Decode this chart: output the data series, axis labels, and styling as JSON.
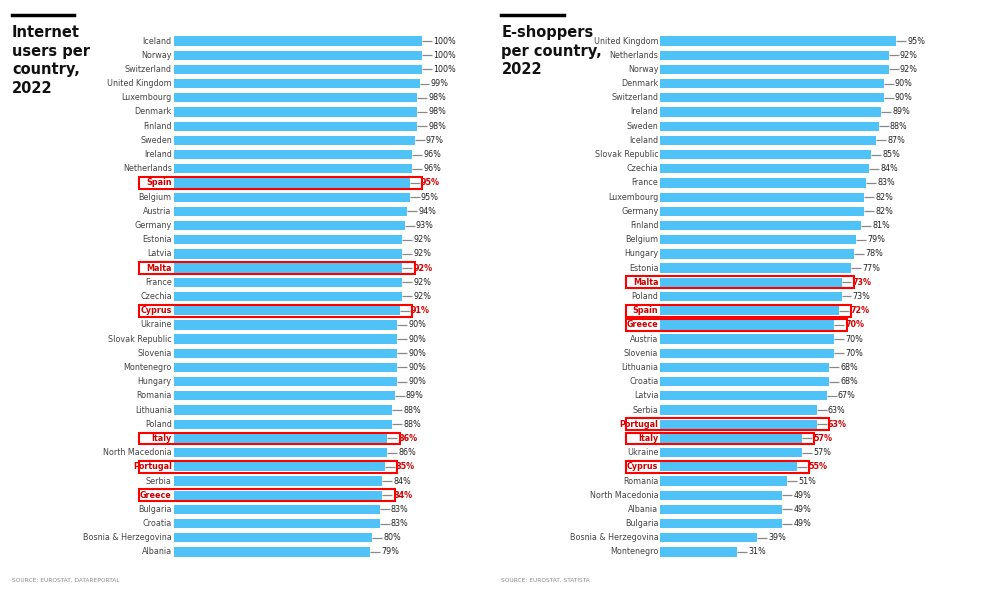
{
  "chart1_title": "Internet\nusers per\ncountry,\n2022",
  "chart1_source": "SOURCE: EUROSTAT, DATAREPORTAL",
  "chart1_countries": [
    "Iceland",
    "Norway",
    "Switzerland",
    "United Kingdom",
    "Luxembourg",
    "Denmark",
    "Finland",
    "Sweden",
    "Ireland",
    "Netherlands",
    "Spain",
    "Belgium",
    "Austria",
    "Germany",
    "Estonia",
    "Latvia",
    "Malta",
    "France",
    "Czechia",
    "Cyprus",
    "Ukraine",
    "Slovak Republic",
    "Slovenia",
    "Montenegro",
    "Hungary",
    "Romania",
    "Lithuania",
    "Poland",
    "Italy",
    "North Macedonia",
    "Portugal",
    "Serbia",
    "Greece",
    "Bulgaria",
    "Croatia",
    "Bosnia & Herzegovina",
    "Albania"
  ],
  "chart1_values": [
    100,
    100,
    100,
    99,
    98,
    98,
    98,
    97,
    96,
    96,
    95,
    95,
    94,
    93,
    92,
    92,
    92,
    92,
    92,
    91,
    90,
    90,
    90,
    90,
    90,
    89,
    88,
    88,
    86,
    86,
    85,
    84,
    84,
    83,
    83,
    80,
    79
  ],
  "chart1_highlighted": [
    "Spain",
    "Malta",
    "Cyprus",
    "Italy",
    "Portugal",
    "Greece"
  ],
  "chart2_title": "E-shoppers\nper country,\n2022",
  "chart2_source": "SOURCE: EUROSTAT, STATISTA",
  "chart2_countries": [
    "United Kingdom",
    "Netherlands",
    "Norway",
    "Denmark",
    "Switzerland",
    "Ireland",
    "Sweden",
    "Iceland",
    "Slovak Republic",
    "Czechia",
    "France",
    "Luxembourg",
    "Germany",
    "Finland",
    "Belgium",
    "Hungary",
    "Estonia",
    "Malta",
    "Poland",
    "Spain",
    "Greece",
    "Austria",
    "Slovenia",
    "Lithuania",
    "Croatia",
    "Latvia",
    "Serbia",
    "Portugal",
    "Italy",
    "Ukraine",
    "Cyprus",
    "Romania",
    "North Macedonia",
    "Albania",
    "Bulgaria",
    "Bosnia & Herzegovina",
    "Montenegro"
  ],
  "chart2_values": [
    95,
    92,
    92,
    90,
    90,
    89,
    88,
    87,
    85,
    84,
    83,
    82,
    82,
    81,
    79,
    78,
    77,
    73,
    73,
    72,
    70,
    70,
    70,
    68,
    68,
    67,
    63,
    63,
    57,
    57,
    55,
    51,
    49,
    49,
    49,
    39,
    31
  ],
  "chart2_highlighted": [
    "Malta",
    "Spain",
    "Greece",
    "Portugal",
    "Italy",
    "Cyprus"
  ],
  "bar_color": "#4FC3F7",
  "highlight_color": "#E53935",
  "text_color_normal": "#444444",
  "text_color_highlight": "#CC0000",
  "text_color_faded": "#999999",
  "background_color": "#FFFFFF",
  "bar_height": 0.65,
  "tick_color": "#888888",
  "value_color_normal": "#222222",
  "value_color_faded": "#aaaaaa"
}
